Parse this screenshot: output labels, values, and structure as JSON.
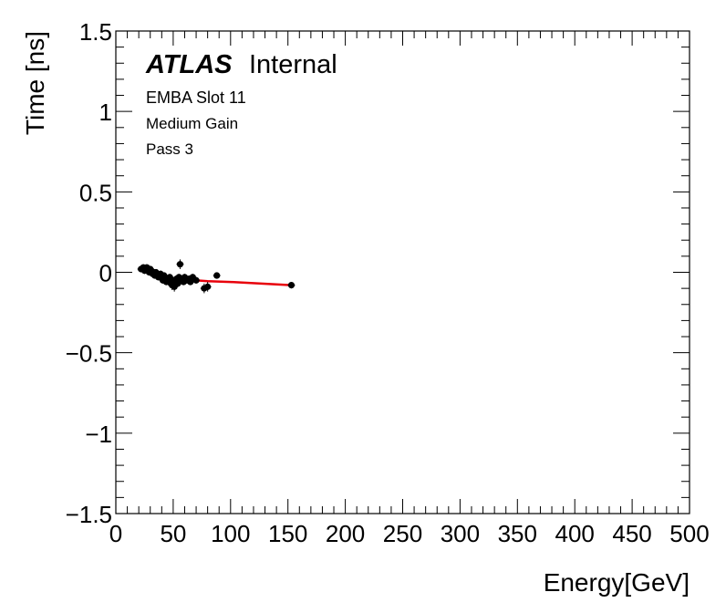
{
  "labels": {
    "atlas": "ATLAS",
    "internal": "Internal",
    "line1": "EMBA Slot 11",
    "line2": "Medium Gain",
    "line3": "Pass 3"
  },
  "chart_data": {
    "type": "scatter",
    "xlabel": "Energy[GeV]",
    "ylabel": "Time [ns]",
    "xlim": [
      0,
      500
    ],
    "ylim": [
      -1.5,
      1.5
    ],
    "x_ticks": [
      0,
      50,
      100,
      150,
      200,
      250,
      300,
      350,
      400,
      450,
      500
    ],
    "y_ticks": [
      -1.5,
      -1,
      -0.5,
      0,
      0.5,
      1,
      1.5
    ],
    "x_tick_labels": [
      "0",
      "50",
      "100",
      "150",
      "200",
      "250",
      "300",
      "350",
      "400",
      "450",
      "500"
    ],
    "y_tick_labels": [
      "−1.5",
      "−1",
      "−0.5",
      "0",
      "0.5",
      "1",
      "1.5"
    ],
    "colors": {
      "points": "#000000",
      "fit": "#e8000b",
      "axes": "#000000"
    },
    "series": [
      {
        "name": "data",
        "x": [
          22,
          24,
          25,
          27,
          28,
          29,
          30,
          31,
          32,
          33,
          34,
          35,
          36,
          37,
          38,
          39,
          40,
          41,
          42,
          43,
          44,
          45,
          46,
          47,
          48,
          49,
          50,
          51,
          52,
          53,
          54,
          55,
          56,
          57,
          58,
          59,
          60,
          62,
          64,
          65,
          67,
          70,
          77,
          80,
          88,
          153
        ],
        "y": [
          0.02,
          0.03,
          0.01,
          0.03,
          0.02,
          0.0,
          0.02,
          0.01,
          -0.01,
          0.0,
          -0.02,
          0.0,
          -0.01,
          -0.03,
          -0.02,
          -0.01,
          -0.03,
          -0.05,
          -0.02,
          -0.04,
          -0.06,
          -0.04,
          -0.05,
          -0.03,
          -0.07,
          -0.08,
          -0.05,
          -0.09,
          -0.06,
          -0.04,
          -0.07,
          -0.03,
          0.05,
          -0.05,
          -0.04,
          -0.06,
          -0.03,
          -0.05,
          -0.04,
          -0.06,
          -0.03,
          -0.05,
          -0.1,
          -0.09,
          -0.02,
          -0.08
        ],
        "yerr": [
          0.02,
          0.02,
          0.02,
          0.02,
          0.02,
          0.02,
          0.02,
          0.02,
          0.02,
          0.02,
          0.02,
          0.02,
          0.02,
          0.02,
          0.02,
          0.02,
          0.02,
          0.02,
          0.02,
          0.02,
          0.02,
          0.02,
          0.02,
          0.02,
          0.02,
          0.03,
          0.02,
          0.03,
          0.02,
          0.02,
          0.02,
          0.02,
          0.03,
          0.02,
          0.02,
          0.02,
          0.02,
          0.02,
          0.02,
          0.02,
          0.02,
          0.02,
          0.03,
          0.03,
          0.02,
          0.02
        ]
      }
    ],
    "fit": {
      "name": "fit",
      "x": [
        22,
        30,
        40,
        50,
        60,
        80,
        100,
        153
      ],
      "y": [
        0.025,
        0.01,
        -0.02,
        -0.045,
        -0.045,
        -0.055,
        -0.06,
        -0.08
      ]
    }
  }
}
